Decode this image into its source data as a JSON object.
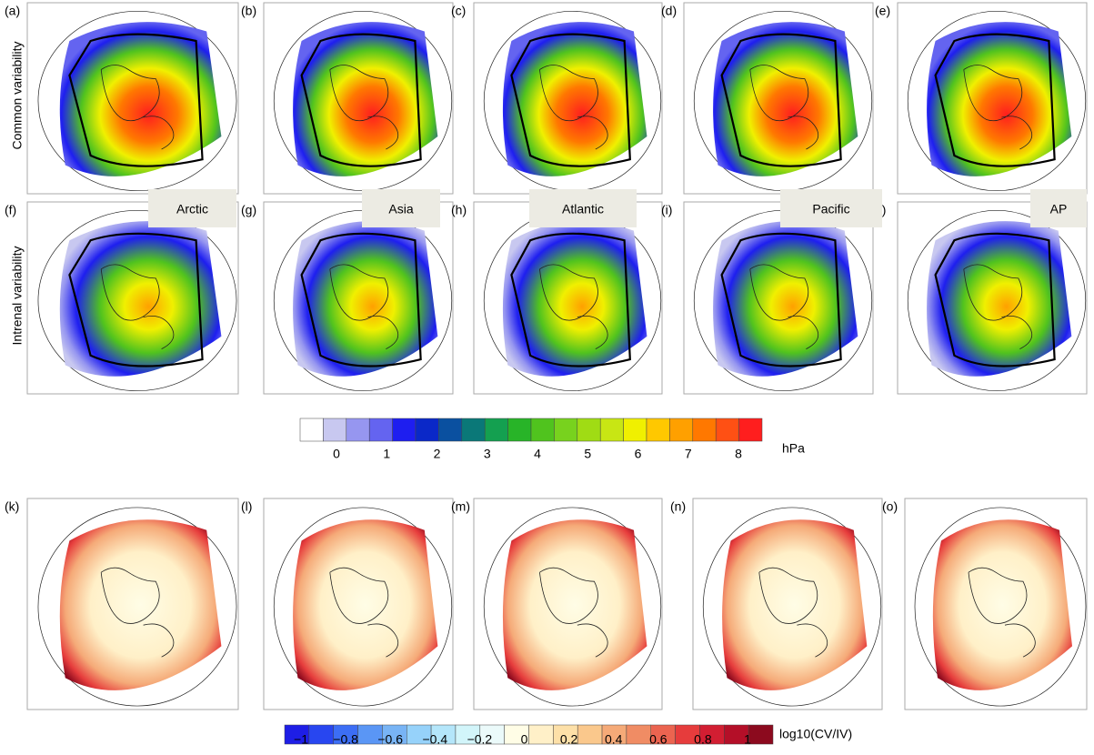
{
  "row_labels": [
    "Common variability",
    "Intrenal variability"
  ],
  "panels": [
    "(a)",
    "(b)",
    "(c)",
    "(d)",
    "(e)",
    "(f)",
    "(g)",
    "(h)",
    "(i)",
    "(j)",
    "(k)",
    "(l)",
    "(m)",
    "(n)",
    "(o)"
  ],
  "region_labels": [
    "Arctic",
    "Asia",
    "Atlantic",
    "Pacific",
    "AP"
  ],
  "colorbar_top": {
    "ticks": [
      "0",
      "1",
      "2",
      "3",
      "4",
      "5",
      "6",
      "7",
      "8"
    ],
    "unit": "hPa",
    "colors": [
      "#ffffff",
      "#c8c8f0",
      "#9696f0",
      "#6464f0",
      "#1e1ef0",
      "#0a28c8",
      "#0a50a0",
      "#0a7878",
      "#14a050",
      "#28b428",
      "#50c31e",
      "#78d21e",
      "#a0dc14",
      "#c8e614",
      "#f0f000",
      "#ffc800",
      "#ffa000",
      "#ff7800",
      "#ff5014",
      "#ff1e1e"
    ]
  },
  "colorbar_bottom": {
    "ticks": [
      "−1",
      "−0.8",
      "−0.6",
      "−0.4",
      "−0.2",
      "0",
      "0.2",
      "0.4",
      "0.6",
      "0.8",
      "1"
    ],
    "unit": "log10(CV/IV)",
    "colors": [
      "#1e1ee6",
      "#2846f0",
      "#3c6ef5",
      "#5a96f5",
      "#78b4f5",
      "#96d2fa",
      "#b4e6fa",
      "#d2f5fa",
      "#ebfafa",
      "#fffde6",
      "#fff0c8",
      "#fde0a8",
      "#fac88c",
      "#f5aa78",
      "#f08c64",
      "#eb6450",
      "#e63c3c",
      "#d21e32",
      "#b40f28",
      "#8c0a1e"
    ]
  }
}
